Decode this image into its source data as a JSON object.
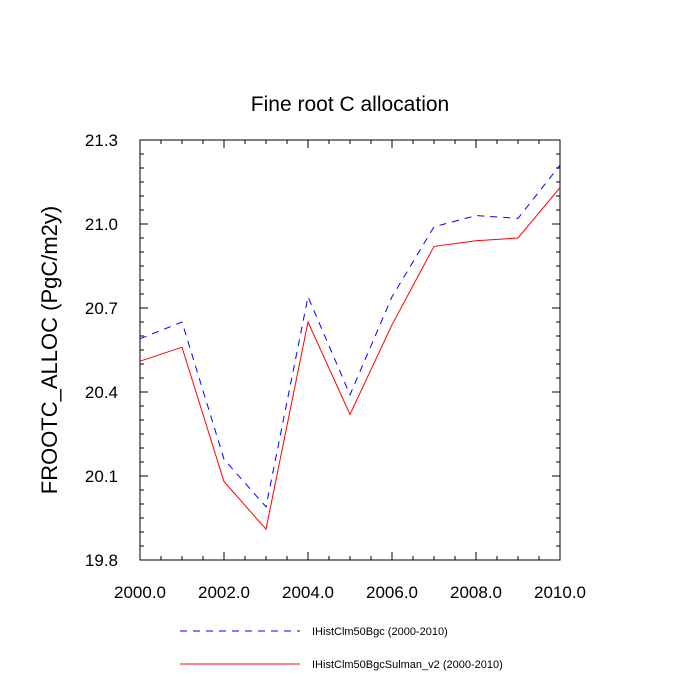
{
  "chart_data": {
    "type": "line",
    "title": "Fine root C allocation",
    "xlabel": "",
    "ylabel": "FROOTC_ALLOC  (PgC/m2y)",
    "xlim": [
      2000,
      2010
    ],
    "ylim": [
      19.8,
      21.3
    ],
    "x": [
      2000,
      2001,
      2002,
      2003,
      2004,
      2005,
      2006,
      2007,
      2008,
      2009,
      2010
    ],
    "xticks": [
      "2000.0",
      "2002.0",
      "2004.0",
      "2006.0",
      "2008.0",
      "2010.0"
    ],
    "xtick_values": [
      2000,
      2002,
      2004,
      2006,
      2008,
      2010
    ],
    "yticks": [
      "19.8",
      "20.1",
      "20.4",
      "20.7",
      "21.0",
      "21.3"
    ],
    "ytick_values": [
      19.8,
      20.1,
      20.4,
      20.7,
      21.0,
      21.3
    ],
    "grid": false,
    "legend_position": "bottom",
    "series": [
      {
        "name": "IHistClm50Bgc (2000-2010)",
        "color": "#0000ff",
        "style": "dashed",
        "values": [
          20.59,
          20.65,
          20.16,
          19.99,
          20.74,
          20.39,
          20.74,
          20.99,
          21.03,
          21.02,
          21.21
        ]
      },
      {
        "name": "IHistClm50BgcSulman_v2 (2000-2010)",
        "color": "#ff0000",
        "style": "solid",
        "values": [
          20.51,
          20.56,
          20.08,
          19.91,
          20.65,
          20.32,
          20.64,
          20.92,
          20.94,
          20.95,
          21.13
        ]
      }
    ]
  }
}
